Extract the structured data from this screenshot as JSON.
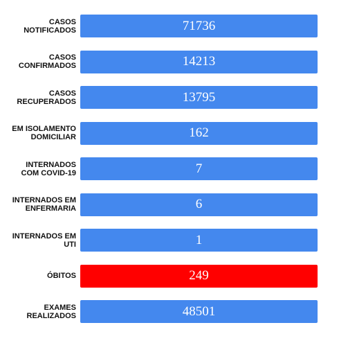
{
  "chart_data": {
    "type": "bar",
    "orientation": "horizontal",
    "categories": [
      [
        "CASOS",
        "NOTIFICADOS"
      ],
      [
        "CASOS",
        "CONFIRMADOS"
      ],
      [
        "CASOS",
        "RECUPERADOS"
      ],
      [
        "EM ISOLAMENTO",
        "DOMICILIAR"
      ],
      [
        "INTERNADOS",
        "COM COVID-19"
      ],
      [
        "INTERNADOS EM",
        "ENFERMARIA"
      ],
      [
        "INTERNADOS EM",
        "UTI"
      ],
      [
        "ÓBITOS"
      ],
      [
        "EXAMES",
        "REALIZADOS"
      ]
    ],
    "values": [
      71736,
      14213,
      13795,
      162,
      7,
      6,
      1,
      249,
      48501
    ],
    "value_labels": [
      "71736",
      "14213",
      "13795",
      "162",
      "7",
      "6",
      "1",
      "249",
      "48501"
    ],
    "bar_colors": [
      "#4488ee",
      "#4488ee",
      "#4488ee",
      "#4488ee",
      "#4488ee",
      "#4488ee",
      "#4488ee",
      "#ff0000",
      "#4488ee"
    ],
    "title": "",
    "xlabel": "",
    "ylabel": ""
  }
}
